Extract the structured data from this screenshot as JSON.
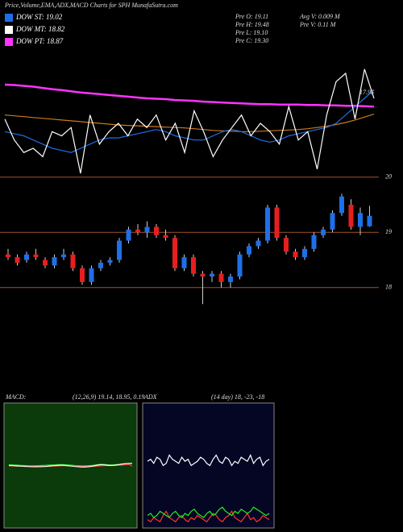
{
  "header": {
    "title": "Price,Volume,EMA,ADX,MACD Charts for SPH MunafaSutra.com",
    "legend": [
      {
        "label": "DOW ST: 19.02",
        "color": "#1e6fe8"
      },
      {
        "label": "DOW MT: 18.82",
        "color": "#ffffff"
      },
      {
        "label": "DOW PT: 18.87",
        "color": "#ff33ff"
      }
    ],
    "prev": [
      "Pre O: 19.11",
      "Pre H: 19.48",
      "Pre L: 19.10",
      "Pre C: 19.30"
    ],
    "volume": [
      "Avg V: 0.009 M",
      "Pre V: 0.11 M"
    ]
  },
  "chart_data": [
    {
      "type": "line",
      "ylim": [
        17.5,
        20.5
      ],
      "annotation": "17.95",
      "series": [
        {
          "color": "#ff33ff",
          "values": [
            19.63,
            19.62,
            19.6,
            19.58,
            19.55,
            19.52,
            19.5,
            19.47,
            19.44,
            19.42,
            19.4,
            19.38,
            19.36,
            19.34,
            19.32,
            19.3,
            19.29,
            19.28,
            19.26,
            19.25,
            19.24,
            19.22,
            19.21,
            19.2,
            19.19,
            19.18,
            19.17,
            19.16,
            19.16,
            19.15,
            19.15,
            19.15,
            19.14,
            19.14,
            19.13,
            19.13,
            19.12,
            19.12,
            19.11,
            19.1
          ]
        },
        {
          "color": "#cc7a1a",
          "values": [
            18.9,
            18.88,
            18.86,
            18.84,
            18.82,
            18.8,
            18.78,
            18.76,
            18.74,
            18.72,
            18.7,
            18.68,
            18.66,
            18.65,
            18.64,
            18.63,
            18.62,
            18.61,
            18.6,
            18.59,
            18.57,
            18.55,
            18.53,
            18.52,
            18.51,
            18.5,
            18.5,
            18.51,
            18.52,
            18.53,
            18.54,
            18.55,
            18.57,
            18.6,
            18.63,
            18.67,
            18.72,
            18.78,
            18.85,
            18.92
          ]
        },
        {
          "color": "#1e6fe8",
          "values": [
            18.5,
            18.45,
            18.4,
            18.3,
            18.2,
            18.1,
            18.05,
            18.0,
            18.1,
            18.2,
            18.3,
            18.35,
            18.35,
            18.4,
            18.45,
            18.5,
            18.55,
            18.5,
            18.4,
            18.35,
            18.3,
            18.3,
            18.4,
            18.5,
            18.55,
            18.5,
            18.4,
            18.3,
            18.25,
            18.3,
            18.4,
            18.45,
            18.5,
            18.55,
            18.6,
            18.7,
            18.9,
            19.1,
            19.3,
            19.5
          ]
        },
        {
          "color": "#ffffff",
          "values": [
            18.8,
            18.3,
            18.0,
            18.1,
            17.9,
            18.5,
            18.4,
            18.6,
            17.5,
            18.9,
            18.2,
            18.5,
            18.7,
            18.4,
            18.8,
            18.6,
            18.9,
            18.3,
            18.7,
            18.0,
            19.0,
            18.5,
            17.9,
            18.3,
            18.6,
            18.9,
            18.4,
            18.7,
            18.5,
            18.2,
            19.1,
            18.3,
            18.5,
            17.6,
            18.9,
            19.7,
            19.9,
            18.8,
            20.0,
            19.3
          ]
        }
      ]
    },
    {
      "type": "candlestick",
      "ylim": [
        16.2,
        20.07
      ],
      "yticks": [
        18,
        19,
        20
      ],
      "grid": true,
      "up_color": "#1e6fe8",
      "down_color": "#e81e1e",
      "open": [
        18.6,
        18.55,
        18.5,
        18.6,
        18.5,
        18.4,
        18.55,
        18.6,
        18.35,
        18.1,
        18.35,
        18.45,
        18.5,
        18.85,
        19.05,
        19.0,
        19.1,
        18.95,
        18.9,
        18.35,
        18.55,
        18.25,
        18.2,
        18.25,
        18.1,
        18.2,
        18.6,
        18.75,
        18.85,
        19.45,
        18.9,
        18.65,
        18.55,
        18.7,
        18.95,
        19.05,
        19.35,
        19.5,
        19.1,
        19.11
      ],
      "high": [
        18.7,
        18.6,
        18.65,
        18.7,
        18.55,
        18.6,
        18.7,
        18.65,
        18.4,
        18.4,
        18.5,
        18.55,
        18.9,
        19.1,
        19.15,
        19.2,
        19.15,
        19.05,
        18.95,
        18.6,
        18.6,
        18.3,
        18.3,
        18.3,
        18.25,
        18.65,
        18.8,
        18.9,
        19.5,
        19.5,
        18.95,
        18.7,
        18.75,
        19.0,
        19.1,
        19.4,
        19.7,
        19.6,
        19.45,
        19.48
      ],
      "low": [
        18.5,
        18.4,
        18.45,
        18.5,
        18.35,
        18.35,
        18.5,
        18.3,
        18.05,
        18.05,
        18.3,
        18.4,
        18.45,
        18.8,
        18.95,
        18.9,
        18.9,
        18.85,
        18.3,
        18.3,
        18.2,
        17.7,
        18.1,
        18.0,
        18.0,
        18.15,
        18.55,
        18.7,
        18.8,
        18.85,
        18.6,
        18.5,
        18.5,
        18.65,
        18.9,
        19.0,
        19.3,
        19.05,
        18.95,
        19.1
      ],
      "close": [
        18.55,
        18.45,
        18.6,
        18.55,
        18.4,
        18.55,
        18.6,
        18.35,
        18.1,
        18.35,
        18.45,
        18.5,
        18.85,
        19.05,
        19.0,
        19.1,
        18.95,
        18.9,
        18.35,
        18.55,
        18.25,
        18.2,
        18.25,
        18.1,
        18.2,
        18.6,
        18.75,
        18.85,
        19.45,
        18.9,
        18.65,
        18.55,
        18.7,
        18.95,
        19.05,
        19.35,
        19.65,
        19.1,
        19.35,
        19.3
      ]
    },
    {
      "type": "line",
      "label": "MACD:",
      "params": "(12,26,9) 19.14, 18.95, 0.19",
      "ylim": [
        15,
        23
      ],
      "background": "#0b3a0b",
      "series": [
        {
          "color": "#22dd22",
          "values": [
            19.05,
            19.04,
            19.03,
            19.02,
            19.01,
            19.0,
            18.99,
            18.98,
            18.98,
            18.99,
            19.0,
            19.01,
            19.02,
            19.03,
            19.04,
            19.05,
            19.06,
            19.06,
            19.05,
            19.03,
            19.02,
            19.0,
            18.99,
            18.98,
            18.98,
            18.99,
            19.0,
            19.02,
            19.05,
            19.08,
            19.07,
            19.05,
            19.04,
            19.05,
            19.06,
            19.08,
            19.1,
            19.12,
            19.12,
            19.13
          ]
        },
        {
          "color": "#ff3333",
          "values": [
            18.98,
            18.98,
            18.97,
            18.97,
            18.96,
            18.96,
            18.95,
            18.95,
            18.94,
            18.94,
            18.94,
            18.94,
            18.95,
            18.95,
            18.96,
            18.97,
            18.98,
            18.99,
            18.99,
            18.99,
            18.98,
            18.97,
            18.96,
            18.95,
            18.94,
            18.94,
            18.94,
            18.95,
            18.96,
            18.98,
            18.99,
            19.0,
            19.0,
            19.0,
            19.01,
            19.02,
            19.03,
            19.05,
            19.07,
            18.95
          ]
        },
        {
          "color": "#ffffff",
          "values": [
            19.0,
            19.0,
            18.98,
            18.97,
            18.96,
            18.95,
            18.94,
            18.93,
            18.92,
            18.92,
            18.93,
            18.94,
            18.95,
            18.97,
            18.99,
            19.0,
            19.02,
            19.02,
            19.0,
            18.98,
            18.96,
            18.94,
            18.92,
            18.9,
            18.9,
            18.92,
            18.95,
            18.98,
            19.02,
            19.05,
            19.04,
            19.02,
            19.0,
            19.01,
            19.03,
            19.06,
            19.1,
            19.12,
            19.13,
            19.14
          ]
        }
      ]
    },
    {
      "type": "line",
      "label": "ADX",
      "params": "(14 day) 18, -23, -18",
      "ylim": [
        0,
        60
      ],
      "background": "#050524",
      "series": [
        {
          "color": "#ffffff",
          "values": [
            32,
            33,
            31,
            34,
            33,
            30,
            31,
            35,
            33,
            32,
            31,
            34,
            32,
            33,
            30,
            31,
            32,
            34,
            33,
            31,
            30,
            33,
            35,
            32,
            31,
            34,
            33,
            30,
            32,
            31,
            34,
            33,
            32,
            35,
            31,
            33,
            34,
            30,
            32,
            33
          ]
        },
        {
          "color": "#ff3333",
          "values": [
            4,
            3,
            5,
            4,
            3,
            6,
            8,
            5,
            4,
            3,
            5,
            6,
            4,
            3,
            5,
            4,
            6,
            5,
            4,
            3,
            5,
            7,
            6,
            4,
            3,
            5,
            6,
            8,
            5,
            4,
            3,
            5,
            7,
            4,
            5,
            3,
            4,
            6,
            5,
            4
          ]
        },
        {
          "color": "#22ee22",
          "values": [
            6,
            7,
            5,
            6,
            8,
            7,
            6,
            5,
            7,
            8,
            6,
            5,
            7,
            6,
            8,
            9,
            7,
            6,
            5,
            7,
            8,
            6,
            7,
            9,
            10,
            8,
            7,
            6,
            8,
            7,
            9,
            8,
            7,
            8,
            10,
            9,
            8,
            7,
            6,
            7
          ]
        }
      ]
    }
  ]
}
